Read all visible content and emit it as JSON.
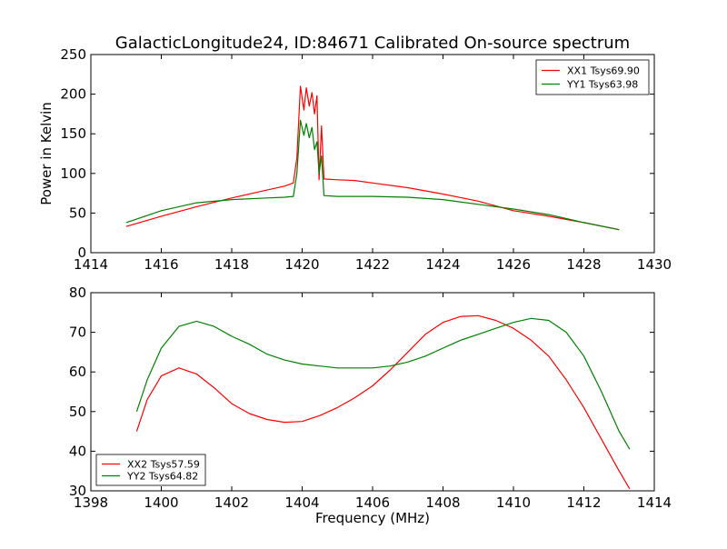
{
  "page_title": "GalacticLongitude24, ID:84671 Calibrated On-source spectrum",
  "chart_data": [
    {
      "type": "line",
      "xlim": [
        1414,
        1430
      ],
      "ylim": [
        0,
        250
      ],
      "xticks": [
        1414,
        1416,
        1418,
        1420,
        1422,
        1424,
        1426,
        1428,
        1430
      ],
      "yticks": [
        0,
        50,
        100,
        150,
        200,
        250
      ],
      "xlabel": "",
      "ylabel": "Power in Kelvin",
      "legend_position": "top-right",
      "series": [
        {
          "name": "XX1 Tsys69.90",
          "color": "#ff0000",
          "points": [
            [
              1415.0,
              33
            ],
            [
              1416.0,
              46
            ],
            [
              1417.0,
              58
            ],
            [
              1418.0,
              69
            ],
            [
              1419.0,
              79
            ],
            [
              1419.5,
              84
            ],
            [
              1419.75,
              88
            ],
            [
              1419.85,
              120
            ],
            [
              1419.95,
              210
            ],
            [
              1420.05,
              180
            ],
            [
              1420.12,
              208
            ],
            [
              1420.2,
              185
            ],
            [
              1420.28,
              202
            ],
            [
              1420.35,
              175
            ],
            [
              1420.42,
              198
            ],
            [
              1420.48,
              92
            ],
            [
              1420.55,
              160
            ],
            [
              1420.62,
              93
            ],
            [
              1421.0,
              92
            ],
            [
              1421.5,
              91
            ],
            [
              1422.0,
              88
            ],
            [
              1423.0,
              82
            ],
            [
              1424.0,
              74
            ],
            [
              1425.0,
              65
            ],
            [
              1426.0,
              53
            ],
            [
              1427.0,
              46
            ],
            [
              1428.0,
              38
            ],
            [
              1429.0,
              29
            ]
          ]
        },
        {
          "name": "YY1 Tsys63.98",
          "color": "#008000",
          "points": [
            [
              1415.0,
              38
            ],
            [
              1416.0,
              53
            ],
            [
              1417.0,
              63
            ],
            [
              1418.0,
              67
            ],
            [
              1419.0,
              69
            ],
            [
              1419.5,
              70
            ],
            [
              1419.75,
              71
            ],
            [
              1419.85,
              100
            ],
            [
              1419.95,
              167
            ],
            [
              1420.05,
              148
            ],
            [
              1420.12,
              163
            ],
            [
              1420.2,
              145
            ],
            [
              1420.28,
              158
            ],
            [
              1420.35,
              130
            ],
            [
              1420.42,
              140
            ],
            [
              1420.48,
              100
            ],
            [
              1420.55,
              122
            ],
            [
              1420.62,
              72
            ],
            [
              1421.0,
              71
            ],
            [
              1422.0,
              71
            ],
            [
              1423.0,
              70
            ],
            [
              1424.0,
              67
            ],
            [
              1425.0,
              61
            ],
            [
              1426.0,
              55
            ],
            [
              1427.0,
              48
            ],
            [
              1428.0,
              38
            ],
            [
              1429.0,
              29
            ]
          ]
        }
      ]
    },
    {
      "type": "line",
      "xlim": [
        1398,
        1414
      ],
      "ylim": [
        30,
        80
      ],
      "xticks": [
        1398,
        1400,
        1402,
        1404,
        1406,
        1408,
        1410,
        1412,
        1414
      ],
      "yticks": [
        30,
        40,
        50,
        60,
        70,
        80
      ],
      "xlabel": "Frequency (MHz)",
      "ylabel": "",
      "legend_position": "lower-left",
      "series": [
        {
          "name": "XX2 Tsys57.59",
          "color": "#ff0000",
          "points": [
            [
              1399.3,
              45
            ],
            [
              1399.6,
              53
            ],
            [
              1400.0,
              59
            ],
            [
              1400.5,
              61
            ],
            [
              1401.0,
              59.5
            ],
            [
              1401.5,
              56
            ],
            [
              1402.0,
              52
            ],
            [
              1402.5,
              49.5
            ],
            [
              1403.0,
              48
            ],
            [
              1403.5,
              47.3
            ],
            [
              1404.0,
              47.5
            ],
            [
              1404.5,
              49
            ],
            [
              1405.0,
              51
            ],
            [
              1405.5,
              53.5
            ],
            [
              1406.0,
              56.5
            ],
            [
              1406.5,
              60.5
            ],
            [
              1407.0,
              65
            ],
            [
              1407.5,
              69.5
            ],
            [
              1408.0,
              72.5
            ],
            [
              1408.5,
              74
            ],
            [
              1409.0,
              74.2
            ],
            [
              1409.5,
              73
            ],
            [
              1410.0,
              71
            ],
            [
              1410.5,
              68
            ],
            [
              1411.0,
              64
            ],
            [
              1411.5,
              58
            ],
            [
              1412.0,
              51
            ],
            [
              1412.5,
              43
            ],
            [
              1413.0,
              35
            ],
            [
              1413.3,
              30.5
            ]
          ]
        },
        {
          "name": "YY2 Tsys64.82",
          "color": "#008000",
          "points": [
            [
              1399.3,
              50
            ],
            [
              1399.6,
              58
            ],
            [
              1400.0,
              66
            ],
            [
              1400.5,
              71.5
            ],
            [
              1401.0,
              72.8
            ],
            [
              1401.5,
              71.5
            ],
            [
              1402.0,
              69
            ],
            [
              1402.5,
              67
            ],
            [
              1403.0,
              64.5
            ],
            [
              1403.5,
              63
            ],
            [
              1404.0,
              62
            ],
            [
              1404.5,
              61.5
            ],
            [
              1405.0,
              61
            ],
            [
              1405.5,
              61
            ],
            [
              1406.0,
              61
            ],
            [
              1406.5,
              61.5
            ],
            [
              1407.0,
              62.5
            ],
            [
              1407.5,
              64
            ],
            [
              1408.0,
              66
            ],
            [
              1408.5,
              68
            ],
            [
              1409.0,
              69.5
            ],
            [
              1409.5,
              71
            ],
            [
              1410.0,
              72.5
            ],
            [
              1410.5,
              73.5
            ],
            [
              1411.0,
              73
            ],
            [
              1411.5,
              70
            ],
            [
              1412.0,
              64
            ],
            [
              1412.5,
              55
            ],
            [
              1413.0,
              45
            ],
            [
              1413.3,
              40.5
            ]
          ]
        }
      ]
    }
  ]
}
